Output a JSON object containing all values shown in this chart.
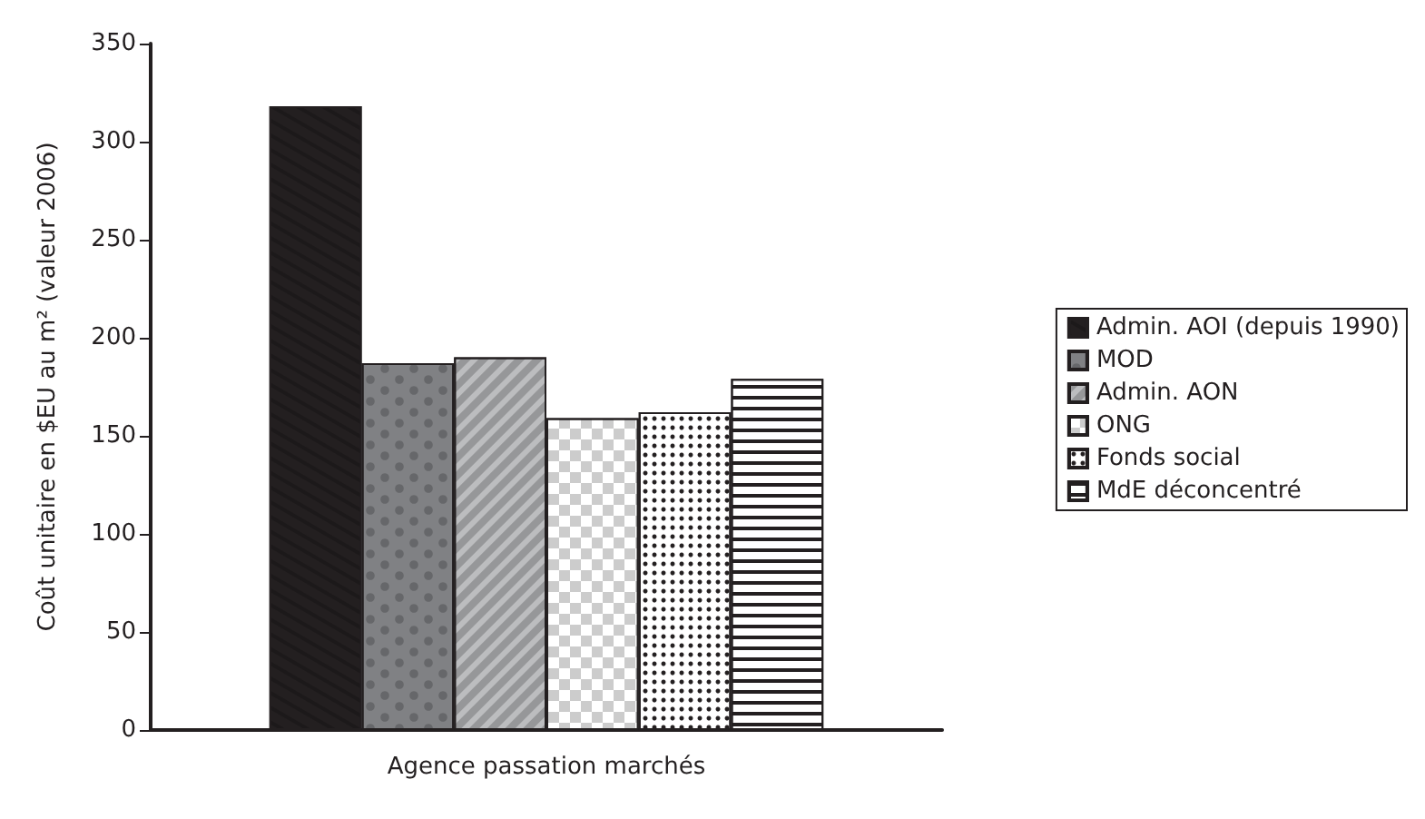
{
  "chart_data": {
    "type": "bar",
    "categories": [
      "Agence passation marchés"
    ],
    "ylabel": "Coût unitaire en $EU au m² (valeur 2006)",
    "ylim": [
      0,
      350
    ],
    "yticks": [
      0,
      50,
      100,
      150,
      200,
      250,
      300,
      350
    ],
    "grid": false,
    "legend": "right",
    "series": [
      {
        "name": "Admin. AOI (depuis 1990)",
        "color": "#231f20",
        "values": [
          318
        ]
      },
      {
        "name": "MOD",
        "color": "#808184",
        "values": [
          187
        ]
      },
      {
        "name": "Admin. AON",
        "color": "#bcbdbf",
        "values": [
          190
        ]
      },
      {
        "name": "ONG",
        "color": "#ffffff",
        "values": [
          159
        ]
      },
      {
        "name": "Fonds social",
        "color": "#ffffff",
        "values": [
          162
        ]
      },
      {
        "name": "MdE déconcentré",
        "color": "#ffffff",
        "values": [
          179
        ]
      }
    ]
  }
}
